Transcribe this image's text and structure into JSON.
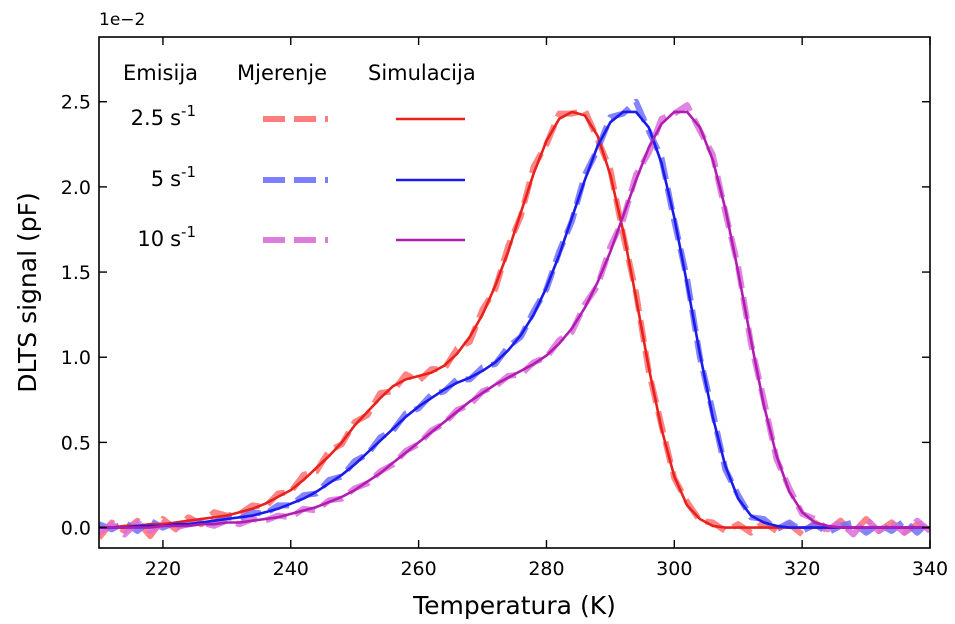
{
  "chart_data": {
    "type": "line",
    "xlabel": "Temperatura (K)",
    "ylabel": "DLTS signal (pF)",
    "y_multiplier": "1e−2",
    "xlim": [
      210,
      340
    ],
    "ylim": [
      -0.12,
      2.88
    ],
    "xticks": [
      220,
      240,
      260,
      280,
      300,
      320,
      340
    ],
    "yticks": [
      0.0,
      0.5,
      1.0,
      1.5,
      2.0,
      2.5
    ],
    "ytick_labels": [
      "0.0",
      "0.5",
      "1.0",
      "1.5",
      "2.0",
      "2.5"
    ],
    "legend": {
      "position": "top-left",
      "headers": [
        "Emisija",
        "Mjerenje",
        "Simulacija"
      ],
      "rows": [
        {
          "label": "2.5",
          "sup": "-1",
          "unit": "s"
        },
        {
          "label": "5",
          "sup": "-1",
          "unit": "s"
        },
        {
          "label": "10",
          "sup": "-1",
          "unit": "s"
        }
      ]
    },
    "x": [
      210,
      212,
      214,
      216,
      218,
      220,
      222,
      224,
      226,
      228,
      230,
      232,
      234,
      236,
      238,
      240,
      242,
      244,
      246,
      248,
      250,
      252,
      254,
      256,
      258,
      260,
      262,
      264,
      266,
      268,
      270,
      272,
      274,
      276,
      278,
      280,
      282,
      284,
      286,
      288,
      290,
      292,
      294,
      296,
      298,
      300,
      302,
      304,
      306,
      308,
      310,
      312,
      314,
      316,
      318,
      320,
      322,
      324,
      326,
      328,
      330,
      332,
      334,
      336,
      338,
      340
    ],
    "series": [
      {
        "emission": "2.5 s-1",
        "measured_color": "#ff6f6f",
        "simulated_color": "#e8211b",
        "simulated": [
          0.0,
          0.0,
          0.01,
          0.01,
          0.02,
          0.02,
          0.03,
          0.04,
          0.05,
          0.06,
          0.07,
          0.09,
          0.11,
          0.14,
          0.18,
          0.22,
          0.28,
          0.35,
          0.42,
          0.5,
          0.6,
          0.68,
          0.76,
          0.83,
          0.87,
          0.89,
          0.91,
          0.95,
          1.02,
          1.12,
          1.25,
          1.42,
          1.62,
          1.85,
          2.08,
          2.27,
          2.4,
          2.44,
          2.42,
          2.3,
          2.07,
          1.74,
          1.35,
          0.94,
          0.58,
          0.3,
          0.13,
          0.05,
          0.01,
          0.0,
          0.0,
          0.0,
          0.0,
          0.0,
          0.0,
          0.0,
          0.0,
          0.0,
          0.0,
          0.0,
          0.0,
          0.0,
          0.0,
          0.0,
          0.0,
          0.0
        ],
        "measured": [
          -0.06,
          0.03,
          -0.02,
          0.04,
          -0.05,
          0.05,
          -0.01,
          0.06,
          0.02,
          0.09,
          0.07,
          0.08,
          0.13,
          0.12,
          0.2,
          0.21,
          0.31,
          0.33,
          0.45,
          0.49,
          0.62,
          0.66,
          0.79,
          0.8,
          0.9,
          0.86,
          0.93,
          0.93,
          1.05,
          1.09,
          1.28,
          1.4,
          1.65,
          1.83,
          2.12,
          2.25,
          2.43,
          2.43,
          2.45,
          2.28,
          2.1,
          1.72,
          1.38,
          0.92,
          0.6,
          0.29,
          0.15,
          0.04,
          0.03,
          -0.02,
          0.02,
          -0.03,
          0.03,
          -0.02,
          0.02,
          -0.04,
          0.03,
          -0.02,
          0.04,
          -0.03,
          0.05,
          -0.02,
          0.03,
          -0.03,
          0.02,
          0.03
        ]
      },
      {
        "emission": "5 s-1",
        "measured_color": "#6f6fff",
        "simulated_color": "#1a1aeb",
        "simulated": [
          0.0,
          0.0,
          0.0,
          0.01,
          0.01,
          0.01,
          0.02,
          0.02,
          0.03,
          0.04,
          0.05,
          0.06,
          0.07,
          0.09,
          0.11,
          0.14,
          0.17,
          0.21,
          0.26,
          0.31,
          0.37,
          0.44,
          0.51,
          0.58,
          0.65,
          0.71,
          0.76,
          0.81,
          0.85,
          0.88,
          0.92,
          0.97,
          1.04,
          1.13,
          1.25,
          1.41,
          1.6,
          1.82,
          2.04,
          2.24,
          2.38,
          2.44,
          2.44,
          2.35,
          2.14,
          1.82,
          1.43,
          1.02,
          0.65,
          0.36,
          0.17,
          0.07,
          0.03,
          0.01,
          0.0,
          0.0,
          0.0,
          0.0,
          0.0,
          0.0,
          0.0,
          0.0,
          0.0,
          0.0,
          0.0,
          0.0
        ],
        "measured": [
          0.02,
          -0.01,
          0.03,
          -0.02,
          0.04,
          0.0,
          0.03,
          0.02,
          0.04,
          0.03,
          0.06,
          0.05,
          0.09,
          0.08,
          0.13,
          0.13,
          0.19,
          0.2,
          0.28,
          0.3,
          0.39,
          0.43,
          0.53,
          0.57,
          0.67,
          0.7,
          0.78,
          0.8,
          0.87,
          0.87,
          0.94,
          0.96,
          1.06,
          1.12,
          1.27,
          1.4,
          1.62,
          1.8,
          2.07,
          2.22,
          2.41,
          2.43,
          2.5,
          2.33,
          2.17,
          1.8,
          1.46,
          1.0,
          0.68,
          0.34,
          0.19,
          0.06,
          0.05,
          -0.01,
          0.03,
          -0.02,
          0.02,
          -0.03,
          0.01,
          0.03,
          -0.03,
          0.02,
          -0.02,
          0.04,
          -0.03,
          0.04
        ]
      },
      {
        "emission": "10 s-1",
        "measured_color": "#da6fda",
        "simulated_color": "#b01db0",
        "simulated": [
          0.0,
          0.0,
          0.0,
          0.0,
          0.0,
          0.01,
          0.01,
          0.01,
          0.02,
          0.02,
          0.03,
          0.03,
          0.04,
          0.05,
          0.06,
          0.08,
          0.1,
          0.12,
          0.15,
          0.18,
          0.22,
          0.27,
          0.32,
          0.38,
          0.44,
          0.5,
          0.56,
          0.62,
          0.68,
          0.74,
          0.79,
          0.84,
          0.88,
          0.92,
          0.96,
          1.01,
          1.08,
          1.17,
          1.29,
          1.44,
          1.62,
          1.83,
          2.04,
          2.23,
          2.37,
          2.44,
          2.44,
          2.35,
          2.16,
          1.87,
          1.5,
          1.1,
          0.72,
          0.42,
          0.21,
          0.09,
          0.03,
          0.01,
          0.0,
          0.0,
          0.0,
          0.0,
          0.0,
          0.0,
          0.0,
          0.0
        ],
        "measured": [
          -0.03,
          0.02,
          -0.04,
          0.03,
          -0.02,
          0.02,
          0.0,
          0.02,
          0.03,
          0.01,
          0.04,
          0.02,
          0.05,
          0.04,
          0.07,
          0.06,
          0.11,
          0.1,
          0.16,
          0.17,
          0.23,
          0.26,
          0.33,
          0.37,
          0.45,
          0.49,
          0.57,
          0.61,
          0.69,
          0.72,
          0.8,
          0.83,
          0.89,
          0.9,
          0.97,
          1.0,
          1.1,
          1.15,
          1.31,
          1.42,
          1.65,
          1.81,
          2.07,
          2.2,
          2.4,
          2.43,
          2.48,
          2.33,
          2.19,
          1.85,
          1.53,
          1.08,
          0.75,
          0.4,
          0.23,
          0.08,
          0.05,
          -0.01,
          0.03,
          -0.04,
          0.05,
          -0.02,
          0.03,
          -0.03,
          0.04,
          -0.02
        ]
      }
    ]
  }
}
